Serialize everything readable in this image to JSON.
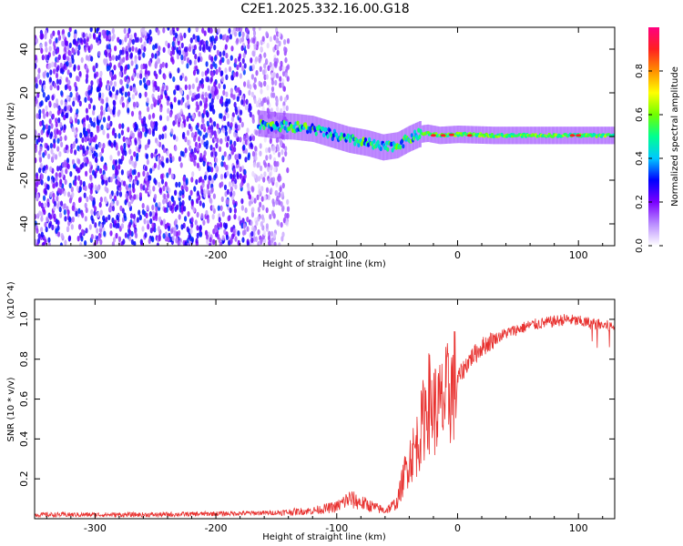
{
  "title": "C2E1.2025.332.16.00.G18",
  "chart_data": [
    {
      "type": "heatmap",
      "xlabel": "Height of straight line (km)",
      "ylabel": "Frequency (Hz)",
      "xlim": [
        -350,
        130
      ],
      "ylim": [
        -50,
        50
      ],
      "x_ticks": [
        -300,
        -200,
        -100,
        0,
        100
      ],
      "y_ticks": [
        -40,
        -20,
        0,
        20,
        40
      ],
      "colorbar": {
        "label": "Normalized spectral amplitude",
        "range": [
          0,
          1
        ],
        "ticks": [
          "0.0",
          "0.2",
          "0.4",
          "0.6",
          "0.8"
        ],
        "colors": [
          "#ffffff",
          "#b98cff",
          "#7a00ff",
          "#0000ff",
          "#00c8ff",
          "#00ff90",
          "#70ff00",
          "#ffff00",
          "#ff9000",
          "#ff2020",
          "#ff0080"
        ]
      },
      "trace": {
        "x": [
          -165,
          -150,
          -135,
          -120,
          -105,
          -90,
          -75,
          -62,
          -50,
          -40,
          -32,
          -25,
          -15,
          0,
          30,
          60,
          90,
          130
        ],
        "y": [
          6,
          5,
          4.5,
          3.5,
          1,
          -1.5,
          -3,
          -5,
          -4,
          -1,
          1,
          1.5,
          0.5,
          1,
          0.5,
          0.5,
          0.5,
          0.5
        ]
      },
      "noise_region": {
        "x": [
          -350,
          -140
        ],
        "y": [
          -50,
          50
        ]
      }
    },
    {
      "type": "line",
      "xlabel": "Height of straight line (km)",
      "ylabel": "SNR (10 * v/v)",
      "y_multiplier": "(x10^4)",
      "xlim": [
        -350,
        130
      ],
      "ylim": [
        0,
        1.1
      ],
      "x_ticks": [
        -300,
        -200,
        -100,
        0,
        100
      ],
      "y_ticks": [
        0.2,
        0.4,
        0.6,
        0.8,
        1.0
      ],
      "series": [
        {
          "color": "#e8312f",
          "x": [
            -350,
            -250,
            -150,
            -120,
            -100,
            -90,
            -80,
            -70,
            -60,
            -50,
            -45,
            -40,
            -35,
            -30,
            -25,
            -20,
            -15,
            -10,
            -5,
            0,
            10,
            20,
            30,
            40,
            50,
            60,
            70,
            80,
            90,
            100,
            110,
            120,
            130
          ],
          "y": [
            0.02,
            0.02,
            0.03,
            0.04,
            0.06,
            0.1,
            0.08,
            0.06,
            0.04,
            0.08,
            0.2,
            0.3,
            0.35,
            0.45,
            0.6,
            0.55,
            0.55,
            0.6,
            0.65,
            0.7,
            0.8,
            0.86,
            0.9,
            0.93,
            0.95,
            0.97,
            0.98,
            0.99,
            1.0,
            0.99,
            0.98,
            0.97,
            0.96
          ]
        }
      ]
    }
  ]
}
